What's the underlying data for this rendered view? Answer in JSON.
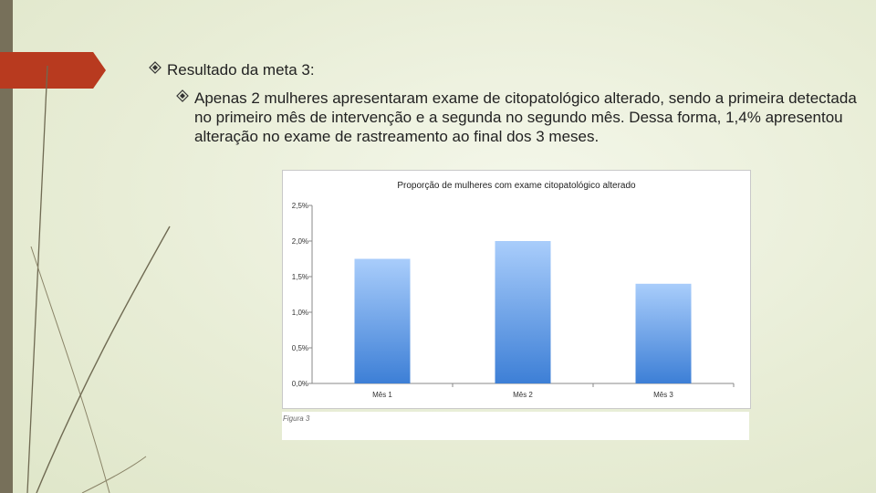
{
  "slide": {
    "bullet1": "Resultado da meta 3:",
    "bullet2": "Apenas 2 mulheres apresentaram exame de citopatológico alterado, sendo a primeira detectada no primeiro mês de intervenção e a segunda no segundo mês. Dessa forma, 1,4% apresentou alteração no exame de rastreamento ao final dos 3 meses.",
    "figure_caption": "Figura 3",
    "accent_color": "#b83a1f"
  },
  "chart_data": {
    "type": "bar",
    "title": "Proporção de mulheres com exame citopatológico alterado",
    "categories": [
      "Mês 1",
      "Mês 2",
      "Mês 3"
    ],
    "values": [
      1.75,
      2.0,
      1.4
    ],
    "yticks": [
      "0,0%",
      "0,5%",
      "1,0%",
      "1,5%",
      "2,0%",
      "2,5%"
    ],
    "ylim": [
      0,
      2.5
    ],
    "xlabel": "",
    "ylabel": "",
    "grid": false,
    "bar_color_top": "#a9cdfb",
    "bar_color_bottom": "#3d7fd6"
  }
}
